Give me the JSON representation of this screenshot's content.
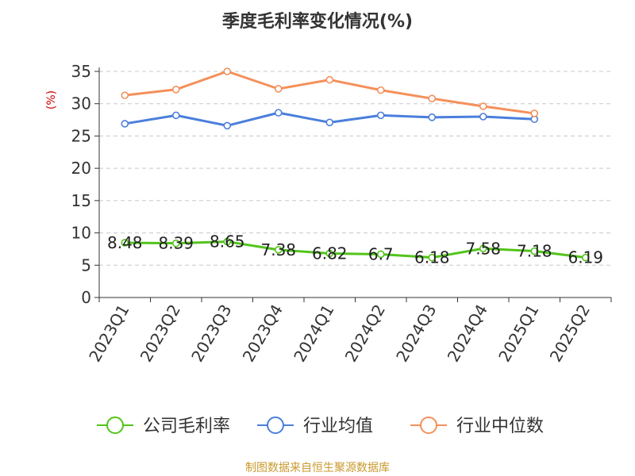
{
  "chart_data": {
    "type": "line",
    "title": "季度毛利率变化情况(%)",
    "ylabel": "(%)",
    "xlabel": "",
    "categories": [
      "2023Q1",
      "2023Q2",
      "2023Q3",
      "2023Q4",
      "2024Q1",
      "2024Q2",
      "2024Q3",
      "2024Q4",
      "2025Q1",
      "2025Q2"
    ],
    "ylim": [
      0,
      35
    ],
    "yticks": [
      0,
      5,
      10,
      15,
      20,
      25,
      30,
      35
    ],
    "grid": "horizontal-dashed",
    "legend_position": "bottom",
    "series": [
      {
        "name": "公司毛利率",
        "color": "#52c41a",
        "values": [
          8.48,
          8.39,
          8.65,
          7.38,
          6.82,
          6.7,
          6.18,
          7.58,
          7.18,
          6.19
        ],
        "labels": [
          "8.48",
          "8.39",
          "8.65",
          "7.38",
          "6.82",
          "6.7",
          "6.18",
          "7.58",
          "7.18",
          "6.19"
        ]
      },
      {
        "name": "行业均值",
        "color": "#4a7fdc",
        "values": [
          26.9,
          28.2,
          26.6,
          28.6,
          27.1,
          28.2,
          27.9,
          28.0,
          27.6,
          null
        ]
      },
      {
        "name": "行业中位数",
        "color": "#f4905a",
        "values": [
          31.3,
          32.2,
          35.0,
          32.3,
          33.7,
          32.1,
          30.8,
          29.6,
          28.5,
          null
        ]
      }
    ],
    "source": "制图数据来自恒生聚源数据库"
  }
}
